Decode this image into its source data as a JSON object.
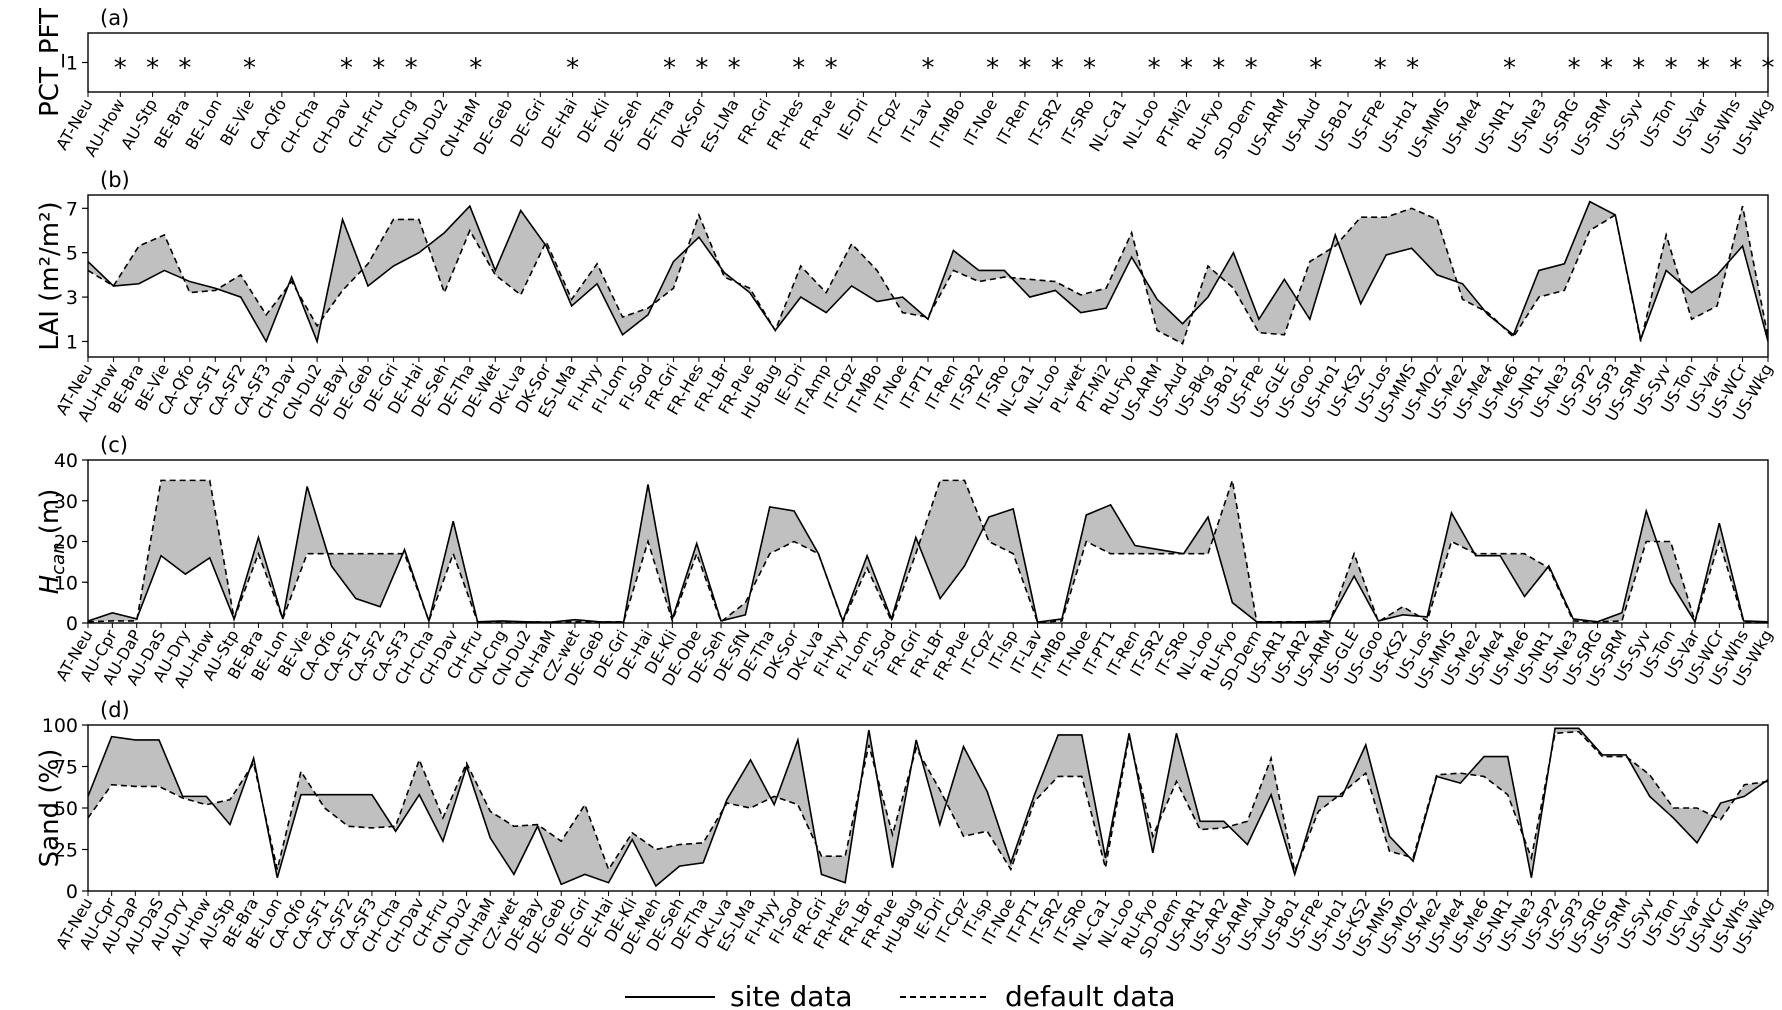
{
  "chart_data": [
    {
      "panel": "(a)",
      "type": "table",
      "ylabel": "PCT_PFT",
      "yticks": [
        "1"
      ],
      "marker": "*",
      "categories": [
        "AT-Neu",
        "AU-How",
        "AU-Stp",
        "BE-Bra",
        "BE-Lon",
        "BE-Vie",
        "CA-Qfo",
        "CH-Cha",
        "CH-Dav",
        "CH-Fru",
        "CN-Cng",
        "CN-Du2",
        "CN-HaM",
        "DE-Geb",
        "DE-Gri",
        "DE-Hai",
        "DE-Kli",
        "DE-Seh",
        "DE-Tha",
        "DK-Sor",
        "ES-LMa",
        "FR-Gri",
        "FR-Hes",
        "FR-Pue",
        "IE-Dri",
        "IT-Cpz",
        "IT-Lav",
        "IT-MBo",
        "IT-Noe",
        "IT-Ren",
        "IT-SR2",
        "IT-SRo",
        "NL-Ca1",
        "NL-Loo",
        "PT-Mi2",
        "RU-Fyo",
        "SD-Dem",
        "US-ARM",
        "US-Aud",
        "US-Bo1",
        "US-FPe",
        "US-Ho1",
        "US-MMS",
        "US-Me4",
        "US-NR1",
        "US-Ne3",
        "US-SRG",
        "US-SRM",
        "US-Syv",
        "US-Ton",
        "US-Var",
        "US-Whs",
        "US-Wkg"
      ],
      "flags": [
        0,
        1,
        1,
        1,
        0,
        1,
        0,
        0,
        1,
        1,
        1,
        0,
        1,
        0,
        0,
        1,
        0,
        0,
        1,
        1,
        1,
        0,
        1,
        1,
        0,
        0,
        1,
        0,
        1,
        1,
        1,
        1,
        0,
        1,
        1,
        1,
        1,
        0,
        1,
        0,
        1,
        1,
        0,
        0,
        1,
        0,
        1,
        1,
        1,
        1,
        1,
        1,
        1
      ]
    },
    {
      "panel": "(b)",
      "type": "line",
      "ylabel": "LAI (m²/m²)",
      "ylim": [
        0.3,
        7.6
      ],
      "yticks": [
        1,
        3,
        5,
        7
      ],
      "categories": [
        "AT-Neu",
        "AU-How",
        "BE-Bra",
        "BE-Vie",
        "CA-Qfo",
        "CA-SF1",
        "CA-SF2",
        "CA-SF3",
        "CH-Dav",
        "CN-Du2",
        "DE-Bay",
        "DE-Geb",
        "DE-Gri",
        "DE-Hai",
        "DE-Seh",
        "DE-Tha",
        "DE-Wet",
        "DK-Lva",
        "DK-Sor",
        "ES-LMa",
        "FI-Hyy",
        "FI-Lom",
        "FI-Sod",
        "FR-Gri",
        "FR-Hes",
        "FR-LBr",
        "FR-Pue",
        "HU-Bug",
        "IE-Dri",
        "IT-Amp",
        "IT-Cpz",
        "IT-MBo",
        "IT-Noe",
        "IT-PT1",
        "IT-Ren",
        "IT-SR2",
        "IT-SRo",
        "NL-Ca1",
        "NL-Loo",
        "PL-wet",
        "PT-Mi2",
        "RU-Fyo",
        "US-ARM",
        "US-Aud",
        "US-Bkg",
        "US-Bo1",
        "US-FPe",
        "US-GLE",
        "US-Goo",
        "US-Ho1",
        "US-KS2",
        "US-Los",
        "US-MMS",
        "US-MOz",
        "US-Me2",
        "US-Me4",
        "US-Me6",
        "US-NR1",
        "US-Ne3",
        "US-SP2",
        "US-SP3",
        "US-SRM",
        "US-Syv",
        "US-Ton",
        "US-Var",
        "US-WCr",
        "US-Wkg"
      ],
      "series": [
        {
          "name": "site data",
          "values": [
            4.6,
            3.5,
            3.6,
            4.2,
            3.7,
            3.4,
            3.0,
            1.0,
            3.9,
            1.0,
            6.5,
            3.5,
            4.4,
            5.0,
            5.9,
            7.1,
            4.2,
            6.9,
            5.3,
            2.6,
            3.6,
            1.3,
            2.2,
            4.6,
            5.7,
            4.1,
            3.2,
            1.5,
            3.0,
            2.3,
            3.5,
            2.8,
            3.0,
            2.0,
            5.1,
            4.2,
            4.2,
            3.0,
            3.3,
            2.3,
            2.5,
            4.8,
            2.9,
            1.8,
            3.0,
            5.0,
            2.0,
            3.8,
            2.0,
            5.8,
            2.7,
            4.9,
            5.2,
            4.0,
            3.6,
            2.2,
            1.3,
            4.2,
            4.5,
            7.3,
            6.7,
            1.1,
            4.2,
            3.2,
            4.0,
            5.3,
            1.0
          ]
        },
        {
          "name": "default data",
          "values": [
            4.2,
            3.5,
            5.3,
            5.8,
            3.2,
            3.3,
            4.0,
            2.2,
            3.7,
            1.7,
            3.3,
            4.5,
            6.5,
            6.5,
            3.2,
            6.0,
            4.0,
            3.1,
            5.5,
            2.9,
            4.5,
            2.1,
            2.5,
            3.4,
            6.7,
            3.9,
            3.4,
            1.5,
            4.4,
            3.2,
            5.4,
            4.2,
            2.3,
            2.1,
            4.2,
            3.7,
            3.9,
            3.8,
            3.7,
            3.1,
            3.4,
            5.9,
            1.5,
            0.9,
            4.4,
            3.4,
            1.4,
            1.3,
            4.6,
            5.3,
            6.6,
            6.6,
            7.0,
            6.5,
            2.9,
            2.3,
            1.2,
            3.0,
            3.3,
            6.0,
            6.7,
            1.0,
            5.8,
            2.0,
            2.6,
            7.1,
            1.2
          ]
        }
      ]
    },
    {
      "panel": "(c)",
      "type": "line",
      "ylabel": "H_can (m)",
      "ylim": [
        0,
        40
      ],
      "yticks": [
        0,
        10,
        20,
        30,
        40
      ],
      "categories": [
        "AT-Neu",
        "AU-Cpr",
        "AU-DaP",
        "AU-DaS",
        "AU-Dry",
        "AU-How",
        "AU-Stp",
        "BE-Bra",
        "BE-Lon",
        "BE-Vie",
        "CA-Qfo",
        "CA-SF1",
        "CA-SF2",
        "CA-SF3",
        "CH-Cha",
        "CH-Dav",
        "CH-Fru",
        "CN-Cng",
        "CN-Du2",
        "CN-HaM",
        "CZ-wet",
        "DE-Geb",
        "DE-Gri",
        "DE-Hai",
        "DE-Kli",
        "DE-Obe",
        "DE-Seh",
        "DE-SfN",
        "DE-Tha",
        "DK-Sor",
        "DK-Lva",
        "FI-Hyy",
        "FI-Lom",
        "FI-Sod",
        "FR-Gri",
        "FR-LBr",
        "FR-Pue",
        "IT-Cpz",
        "IT-Isp",
        "IT-Lav",
        "IT-MBo",
        "IT-Noe",
        "IT-PT1",
        "IT-Ren",
        "IT-SR2",
        "IT-SRo",
        "NL-Loo",
        "RU-Fyo",
        "SD-Dem",
        "US-AR1",
        "US-AR2",
        "US-ARM",
        "US-GLE",
        "US-Goo",
        "US-KS2",
        "US-Los",
        "US-MMS",
        "US-Me2",
        "US-Me4",
        "US-Me6",
        "US-NR1",
        "US-Ne3",
        "US-SRG",
        "US-SRM",
        "US-Syv",
        "US-Ton",
        "US-Var",
        "US-WCr",
        "US-Whs",
        "US-Wkg"
      ],
      "series": [
        {
          "name": "site data",
          "values": [
            0.5,
            2.5,
            1.0,
            16.5,
            12.0,
            16.0,
            1.0,
            21.0,
            1.0,
            33.5,
            14.0,
            6.0,
            4.0,
            18.0,
            0.5,
            25.0,
            0.3,
            0.5,
            0.3,
            0.2,
            0.8,
            0.3,
            0.2,
            34.0,
            1.0,
            19.5,
            0.5,
            2.0,
            28.5,
            27.5,
            17.0,
            0.5,
            16.5,
            1.0,
            21.0,
            6.0,
            14.0,
            26.0,
            28.0,
            0.2,
            1.0,
            26.5,
            29.0,
            19.0,
            18.0,
            17.0,
            26.0,
            5.0,
            0.3,
            0.2,
            0.3,
            0.5,
            11.5,
            0.5,
            2.0,
            1.5,
            27.0,
            16.5,
            16.5,
            6.5,
            14.0,
            1.0,
            0.3,
            2.5,
            27.5,
            10.0,
            0.3,
            24.5,
            0.5,
            0.3
          ]
        },
        {
          "name": "default data",
          "values": [
            0.3,
            0.5,
            0.5,
            35.0,
            35.0,
            35.0,
            1.0,
            17.0,
            1.0,
            17.0,
            17.0,
            17.0,
            17.0,
            17.0,
            0.5,
            17.0,
            0.3,
            0.3,
            0.3,
            0.2,
            0.3,
            0.3,
            0.3,
            20.0,
            0.5,
            17.0,
            0.3,
            5.0,
            17.0,
            20.0,
            17.0,
            0.3,
            13.5,
            0.5,
            17.0,
            35.0,
            35.0,
            20.0,
            17.0,
            0.2,
            0.5,
            20.0,
            17.0,
            17.0,
            17.0,
            17.0,
            17.0,
            35.0,
            0.3,
            0.3,
            0.3,
            0.3,
            17.0,
            0.3,
            4.0,
            0.5,
            20.0,
            17.0,
            17.0,
            17.0,
            13.5,
            0.5,
            0.3,
            0.5,
            20.0,
            20.0,
            0.3,
            20.0,
            0.3,
            0.3
          ]
        }
      ]
    },
    {
      "panel": "(d)",
      "type": "line",
      "ylabel": "Sand (%)",
      "ylim": [
        0,
        100
      ],
      "yticks": [
        0,
        25,
        50,
        75,
        100
      ],
      "categories": [
        "AT-Neu",
        "AU-Cpr",
        "AU-DaP",
        "AU-DaS",
        "AU-Dry",
        "AU-How",
        "AU-Stp",
        "BE-Bra",
        "BE-Lon",
        "CA-Qfo",
        "CA-SF1",
        "CA-SF2",
        "CA-SF3",
        "CH-Cha",
        "CH-Dav",
        "CH-Fru",
        "CN-Du2",
        "CN-HaM",
        "CZ-wet",
        "DE-Bay",
        "DE-Geb",
        "DE-Gri",
        "DE-Hai",
        "DE-Kli",
        "DE-Meh",
        "DE-Seh",
        "DE-Tha",
        "DK-Lva",
        "ES-LMa",
        "FI-Hyy",
        "FI-Sod",
        "FR-Gri",
        "FR-Hes",
        "FR-LBr",
        "FR-Pue",
        "HU-Bug",
        "IE-Dri",
        "IT-Cpz",
        "IT-Isp",
        "IT-Noe",
        "IT-PT1",
        "IT-SR2",
        "IT-SRo",
        "NL-Ca1",
        "NL-Loo",
        "RU-Fyo",
        "SD-Dem",
        "US-AR1",
        "US-AR2",
        "US-ARM",
        "US-Aud",
        "US-Bo1",
        "US-FPe",
        "US-Ho1",
        "US-KS2",
        "US-MMS",
        "US-MOz",
        "US-Me2",
        "US-Me4",
        "US-Me6",
        "US-NR1",
        "US-Ne3",
        "US-SP2",
        "US-SP3",
        "US-SRG",
        "US-SRM",
        "US-Syv",
        "US-Ton",
        "US-Var",
        "US-WCr",
        "US-Whs",
        "US-Wkg"
      ],
      "series": [
        {
          "name": "site data",
          "values": [
            57,
            93,
            91,
            91,
            57,
            57,
            40,
            80,
            8,
            58,
            58,
            58,
            58,
            36,
            58,
            30,
            75,
            32,
            10,
            39,
            4,
            10,
            5,
            31,
            3,
            15,
            17,
            55,
            79,
            52,
            91,
            10,
            5,
            97,
            14,
            91,
            40,
            87,
            60,
            17,
            58,
            94,
            94,
            20,
            95,
            23,
            95,
            42,
            42,
            28,
            58,
            10,
            57,
            57,
            88,
            33,
            18,
            69,
            65,
            81,
            81,
            8,
            98,
            98,
            82,
            82,
            57,
            44,
            29,
            53,
            57,
            67
          ]
        },
        {
          "name": "default data",
          "values": [
            44,
            64,
            63,
            63,
            56,
            52,
            55,
            77,
            13,
            72,
            50,
            39,
            38,
            39,
            79,
            44,
            77,
            48,
            39,
            40,
            30,
            52,
            13,
            35,
            25,
            28,
            29,
            53,
            50,
            57,
            52,
            21,
            21,
            88,
            34,
            86,
            61,
            33,
            36,
            13,
            54,
            69,
            69,
            14,
            93,
            33,
            66,
            37,
            38,
            42,
            80,
            12,
            48,
            59,
            71,
            24,
            20,
            70,
            71,
            69,
            58,
            20,
            95,
            96,
            81,
            81,
            70,
            50,
            50,
            43,
            64,
            66
          ]
        }
      ]
    }
  ],
  "legend": {
    "site": "site data",
    "default": "default data"
  }
}
